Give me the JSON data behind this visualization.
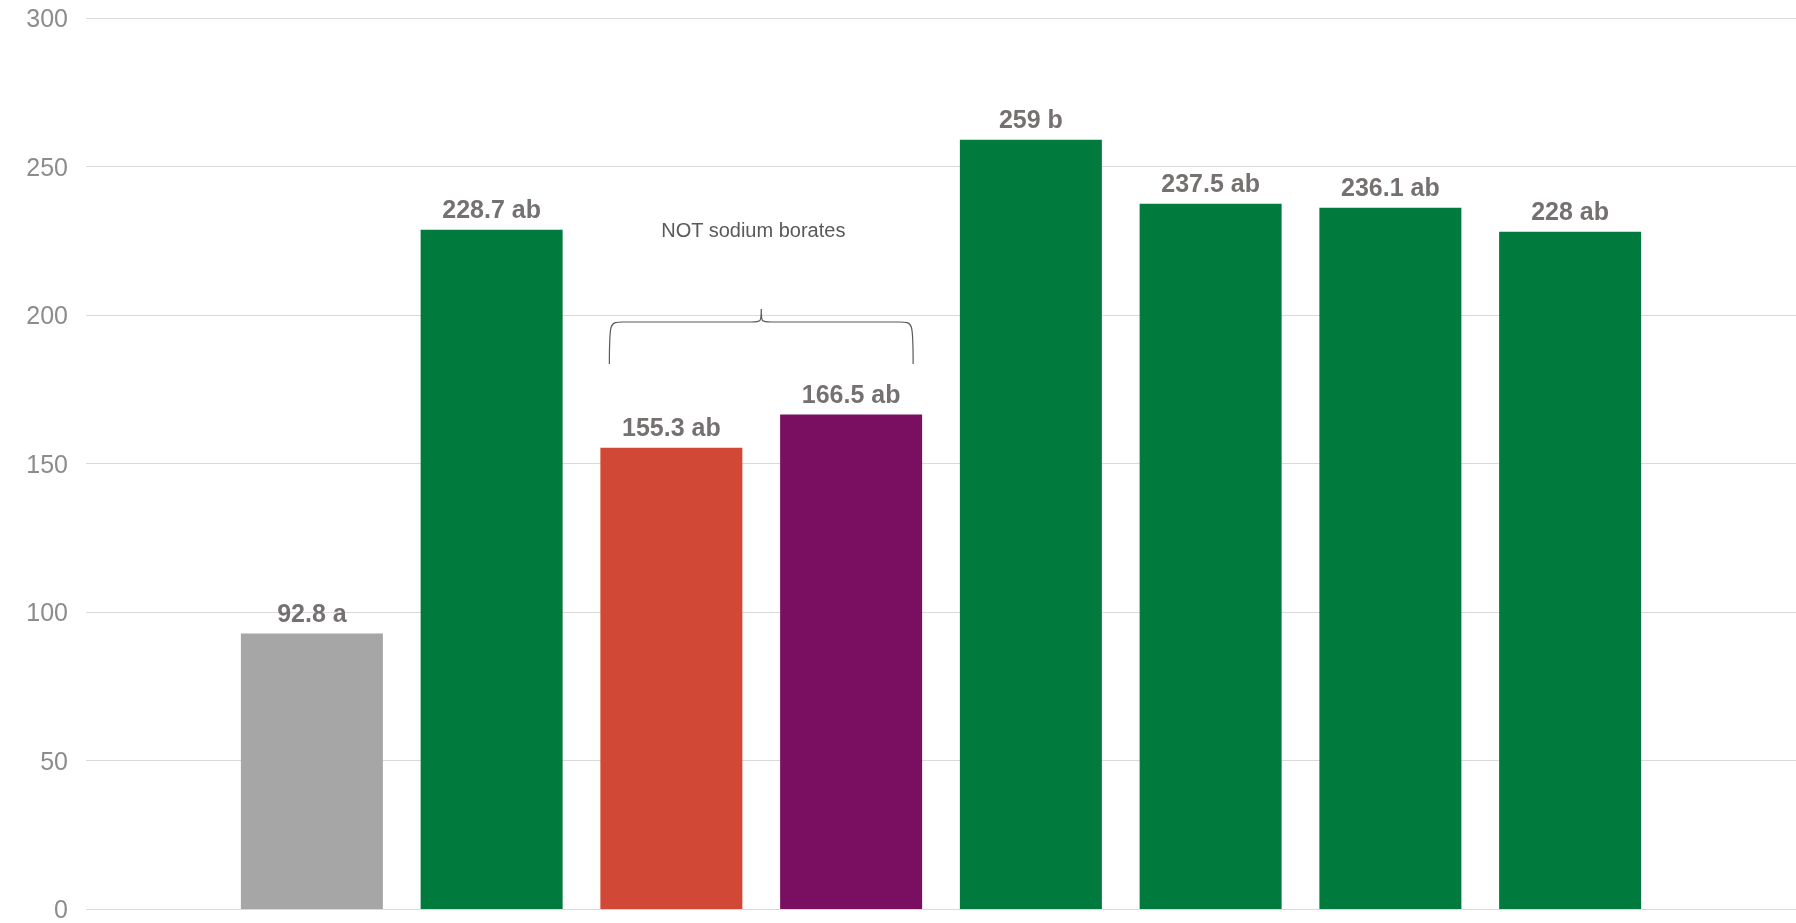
{
  "chart_data": {
    "type": "bar",
    "categories": [
      null,
      null,
      null,
      null,
      null,
      null,
      null,
      null
    ],
    "values": [
      92.8,
      228.7,
      155.3,
      166.5,
      259,
      237.5,
      236.1,
      228
    ],
    "colors": [
      "#a6a6a6",
      "#007a3d",
      "#d24836",
      "#7a0f62",
      "#007a3d",
      "#007a3d",
      "#007a3d",
      "#007a3d"
    ],
    "value_labels": [
      "92.8 a",
      "228.7 ab",
      "155.3 ab",
      "166.5 ab",
      "259 b",
      "237.5 ab",
      "236.1 ab",
      "228 ab"
    ],
    "annotations": [
      "NOT sodium borates"
    ],
    "ylim": [
      0,
      300
    ],
    "yticks": [
      0,
      50,
      100,
      150,
      200,
      250,
      300
    ],
    "grid": "y"
  }
}
